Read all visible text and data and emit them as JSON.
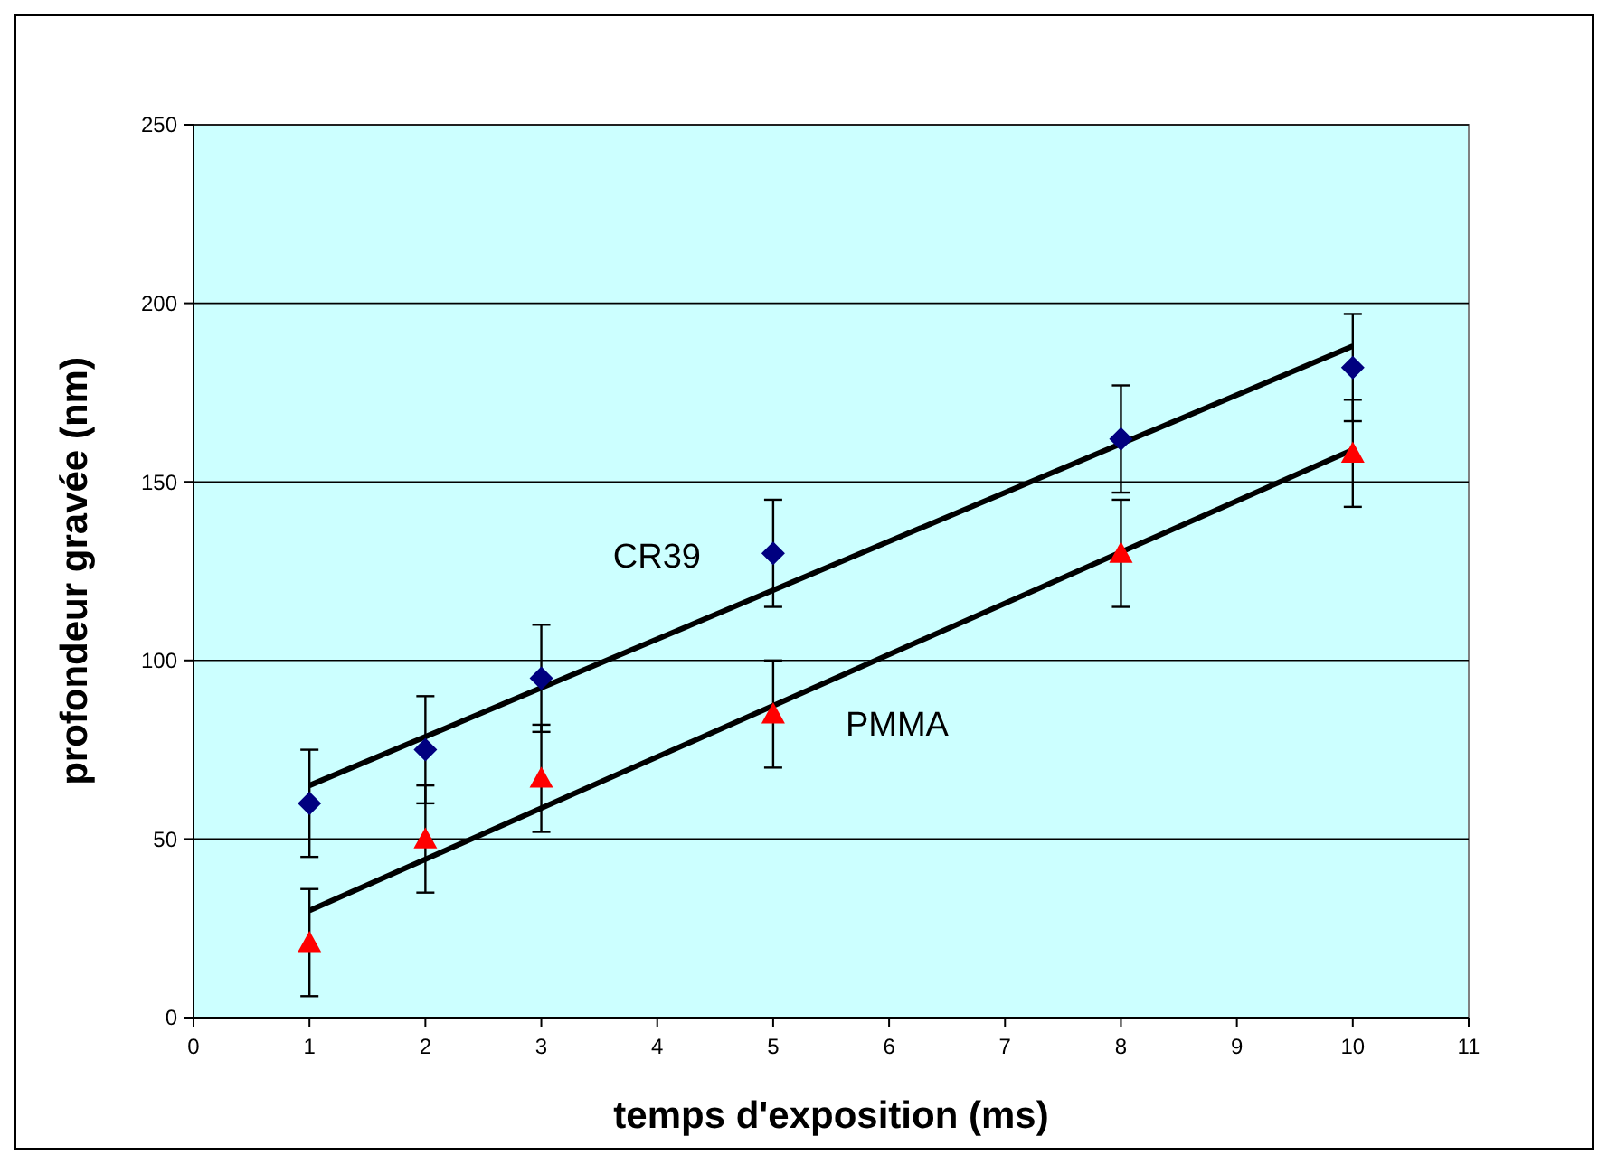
{
  "chart_data": {
    "type": "scatter",
    "xlabel": "temps d'exposition (ms)",
    "ylabel": "profondeur gravée (nm)",
    "xlim": [
      0,
      11
    ],
    "xticks": [
      0,
      1,
      2,
      3,
      4,
      5,
      6,
      7,
      8,
      9,
      10,
      11
    ],
    "ylim": [
      0,
      250
    ],
    "yticks": [
      0,
      50,
      100,
      150,
      200,
      250
    ],
    "grid": "y",
    "series": [
      {
        "name": "CR39",
        "color": "#000080",
        "marker": "diamond",
        "x": [
          1,
          2,
          3,
          5,
          8,
          10
        ],
        "values": [
          60,
          75,
          95,
          130,
          162,
          182
        ],
        "errors": [
          15,
          15,
          15,
          15,
          15,
          15
        ]
      },
      {
        "name": "PMMA",
        "color": "#ff0000",
        "marker": "triangle",
        "x": [
          1,
          2,
          3,
          5,
          8,
          10
        ],
        "values": [
          21,
          50,
          67,
          85,
          130,
          158
        ],
        "errors": [
          15,
          15,
          15,
          15,
          15,
          15
        ]
      },
      {
        "type": "line",
        "color": "#000000",
        "x": [
          1,
          10
        ],
        "values": [
          65,
          188
        ]
      },
      {
        "type": "line",
        "color": "#000000",
        "x": [
          1,
          10
        ],
        "values": [
          30,
          159
        ]
      }
    ]
  }
}
